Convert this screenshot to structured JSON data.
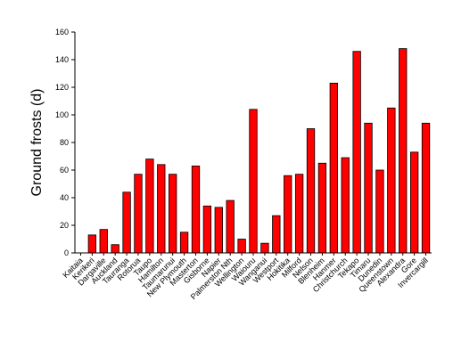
{
  "chart_data": {
    "type": "bar",
    "ylabel": "Ground frosts (d)",
    "xlabel": "",
    "title": "",
    "ylim": [
      0,
      160
    ],
    "yticks": [
      0,
      20,
      40,
      60,
      80,
      100,
      120,
      140,
      160
    ],
    "grid": false,
    "bar_color": "#ff0000",
    "bar_edge_color": "#000000",
    "categories": [
      "Kaitaia",
      "Kerikeri",
      "Dargaville",
      "Auckland",
      "Tauranga",
      "Rotorua",
      "Taupo",
      "Hamilton",
      "Taumarunui",
      "New Plymouth",
      "Masterton",
      "Gisborne",
      "Napier",
      "Palmerston Nth",
      "Wellington",
      "Waiouru",
      "Wanganui",
      "Westport",
      "Hokitika",
      "Milford",
      "Nelson",
      "Blenheim",
      "Hanmer",
      "Christchurch",
      "Tekapo",
      "Timaru",
      "Dunedin",
      "Queenstown",
      "Alexandra",
      "Gore",
      "Invercargill"
    ],
    "values": [
      0,
      13,
      17,
      6,
      44,
      57,
      68,
      64,
      57,
      15,
      63,
      34,
      33,
      38,
      10,
      104,
      7,
      27,
      56,
      57,
      90,
      65,
      123,
      69,
      146,
      94,
      60,
      105,
      148,
      73,
      94
    ]
  }
}
